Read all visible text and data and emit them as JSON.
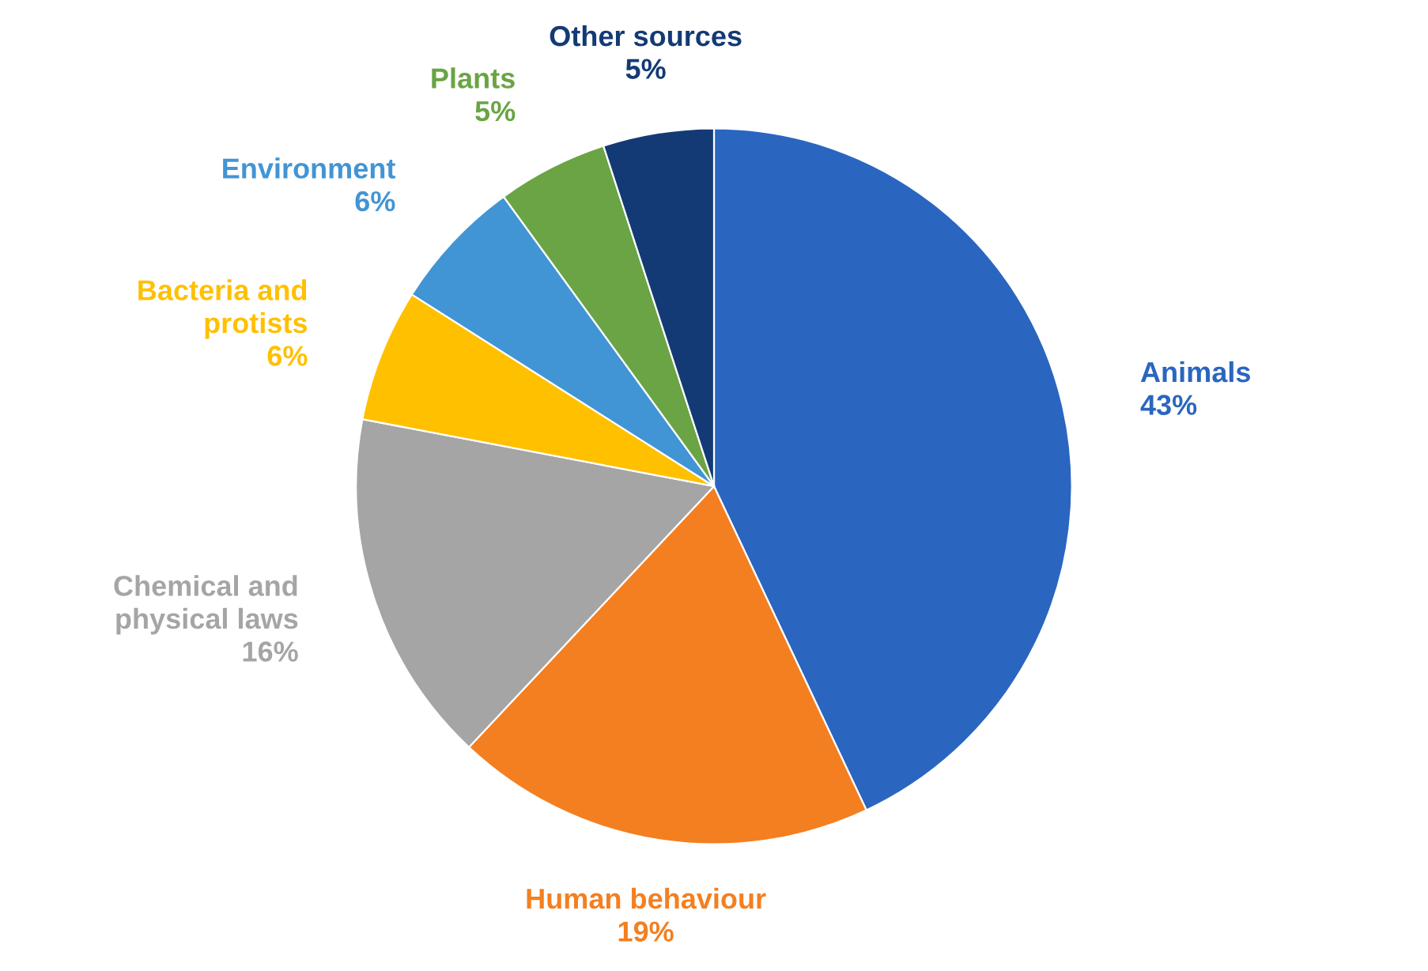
{
  "chart_data": {
    "type": "pie",
    "categories": [
      "Animals",
      "Human behaviour",
      "Chemical and physical laws",
      "Bacteria and protists",
      "Environment",
      "Plants",
      "Other sources"
    ],
    "values": [
      43,
      19,
      16,
      6,
      6,
      5,
      5
    ],
    "value_labels": [
      "43%",
      "19%",
      "16%",
      "6%",
      "6%",
      "5%",
      "5%"
    ],
    "colors": [
      "#2a66c0",
      "#f47f20",
      "#a5a5a5",
      "#ffc000",
      "#4295d4",
      "#6aa444",
      "#133a75"
    ]
  }
}
